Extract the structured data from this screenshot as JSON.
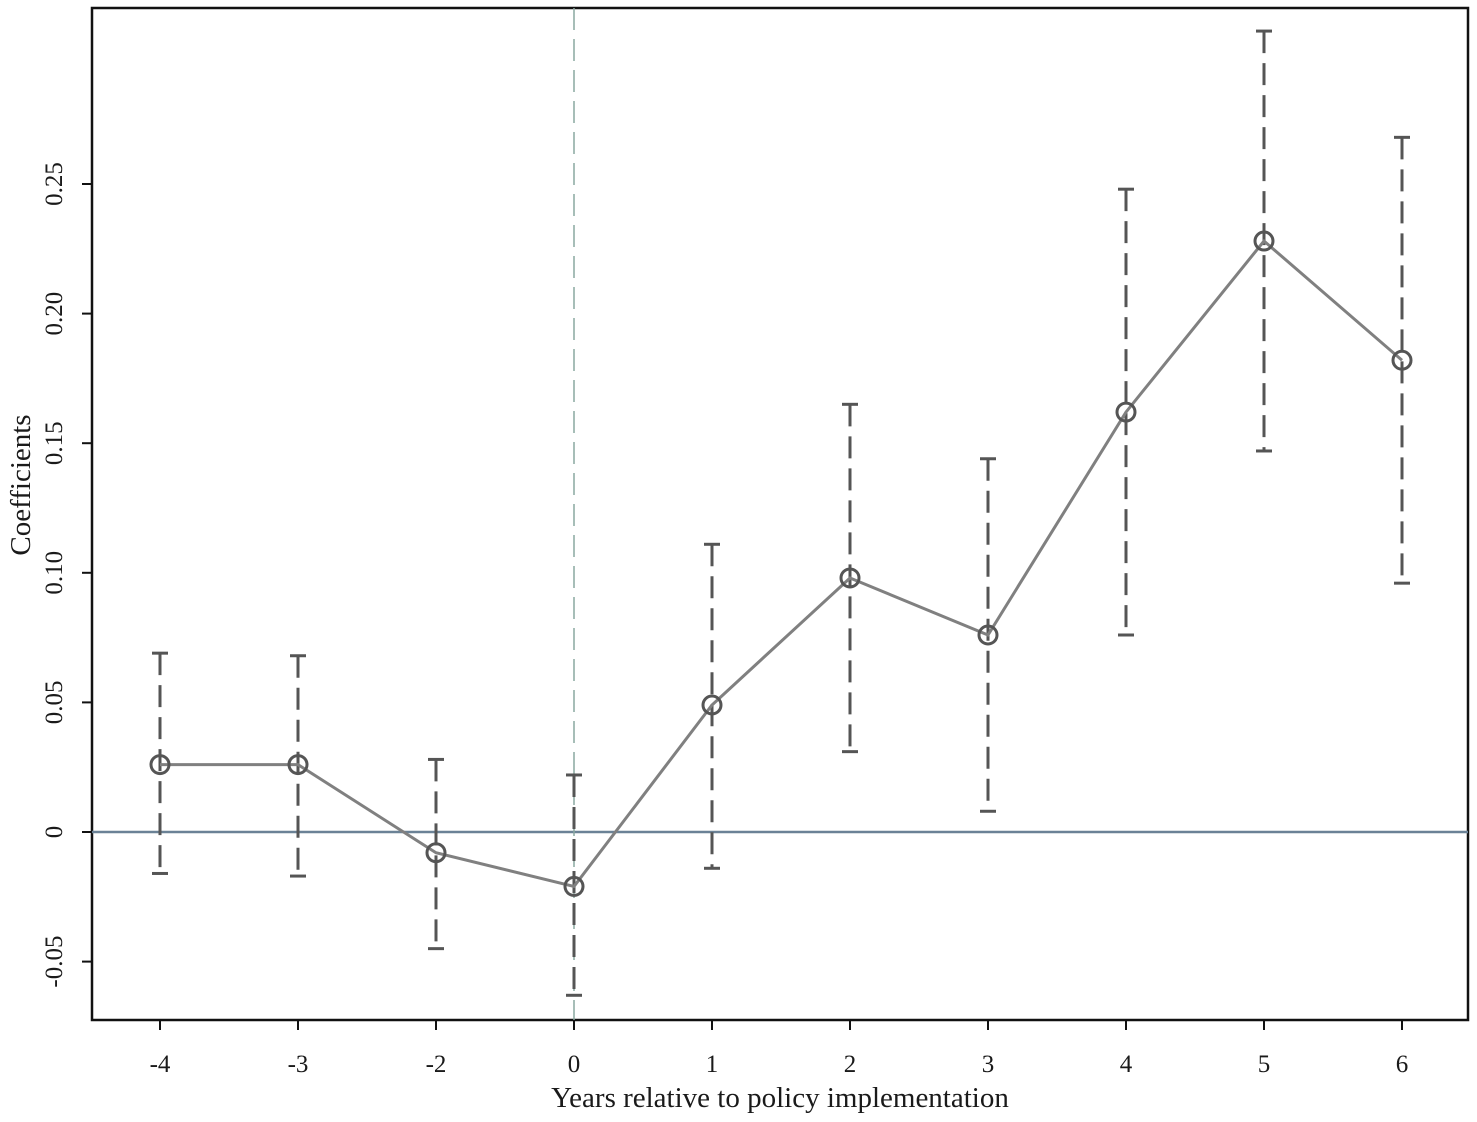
{
  "chart_data": {
    "type": "line",
    "title": "",
    "xlabel": "Years relative to policy implementation",
    "ylabel": "Coefficients",
    "x": [
      "-4",
      "-3",
      "-2",
      "0",
      "1",
      "2",
      "3",
      "4",
      "5",
      "6"
    ],
    "xticks": [
      "-4",
      "-3",
      "-2",
      "0",
      "1",
      "2",
      "3",
      "4",
      "5",
      "6"
    ],
    "yticks": [
      "-0.05",
      "0",
      "0.05",
      "0.10",
      "0.15",
      "0.20",
      "0.25"
    ],
    "ylim": [
      -0.073,
      0.31
    ],
    "series": [
      {
        "coefficients": [
          0.026,
          0.026,
          -0.008,
          -0.021,
          0.049,
          0.098,
          0.076,
          0.162,
          0.228,
          0.182
        ],
        "ci_lower": [
          -0.016,
          -0.017,
          -0.045,
          -0.063,
          -0.014,
          0.031,
          0.008,
          0.076,
          0.147,
          0.096
        ],
        "ci_upper": [
          0.069,
          0.068,
          0.028,
          0.022,
          0.111,
          0.165,
          0.144,
          0.248,
          0.309,
          0.268
        ]
      }
    ],
    "reference_lines": {
      "horizontal_y": 0,
      "vertical_x": "0"
    },
    "grid": false,
    "legend": "none",
    "colors": {
      "series_line": "#808080",
      "marker": "#555555",
      "error_bar": "#555555",
      "zero_line": "#6b8296",
      "vertical_line": "#8aa8a0"
    }
  }
}
